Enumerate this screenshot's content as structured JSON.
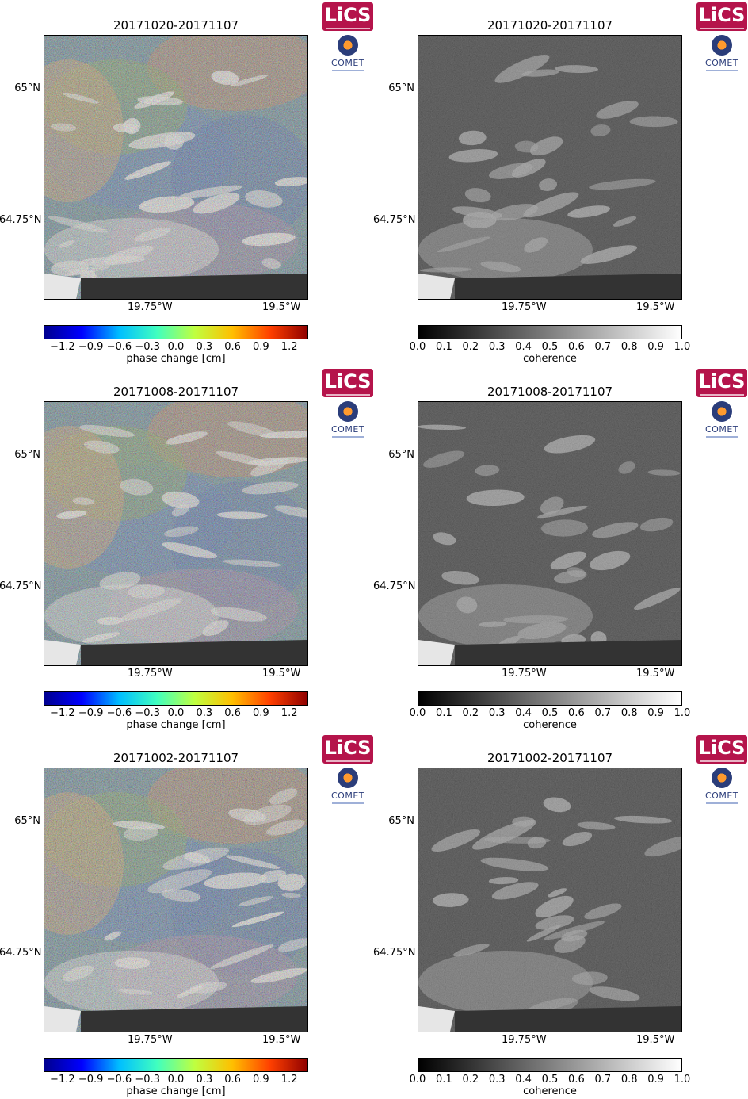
{
  "panels": [
    {
      "title": "20171020-20171107",
      "kind": "phase"
    },
    {
      "title": "20171020-20171107",
      "kind": "coherence"
    },
    {
      "title": "20171008-20171107",
      "kind": "phase"
    },
    {
      "title": "20171008-20171107",
      "kind": "coherence"
    },
    {
      "title": "20171002-20171107",
      "kind": "phase"
    },
    {
      "title": "20171002-20171107",
      "kind": "coherence"
    }
  ],
  "axes": {
    "lat_labels": [
      "65°N",
      "64.75°N"
    ],
    "lon_labels": [
      "19.75°W",
      "19.5°W"
    ]
  },
  "phase_colorbar": {
    "label": "phase change [cm]",
    "ticks": [
      "−1.2",
      "−0.9",
      "−0.6",
      "−0.3",
      "0.0",
      "0.3",
      "0.6",
      "0.9",
      "1.2"
    ],
    "range": [
      -1.4,
      1.4
    ],
    "colormap": "jet"
  },
  "coherence_colorbar": {
    "label": "coherence",
    "ticks": [
      "0.0",
      "0.1",
      "0.2",
      "0.3",
      "0.4",
      "0.5",
      "0.6",
      "0.7",
      "0.8",
      "0.9",
      "1.0"
    ],
    "range": [
      0.0,
      1.0
    ],
    "colormap": "gray"
  },
  "logos": {
    "lics": "LiCS",
    "comet": "COMET"
  },
  "colors": {
    "lics_brand": "#b5144b",
    "comet_brand": "#2b3d7a"
  }
}
